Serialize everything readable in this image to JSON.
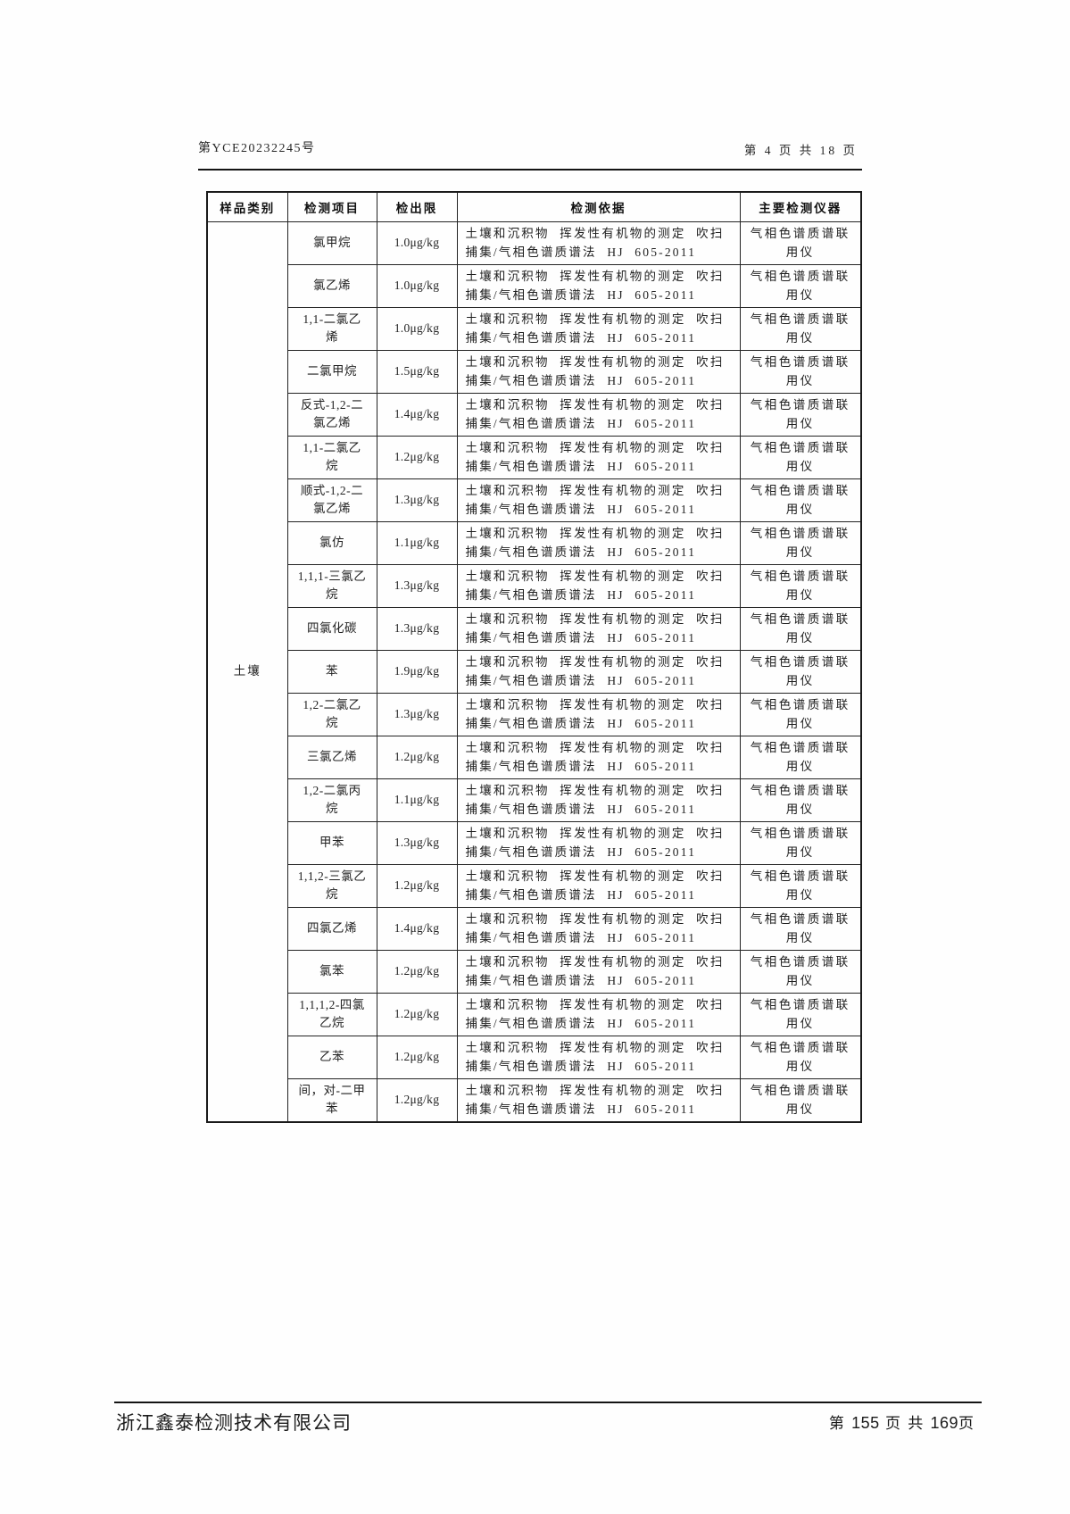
{
  "page": {
    "header_left": "第YCE20232245号",
    "header_right": "第 4 页 共 18 页",
    "footer": {
      "company": "浙江鑫泰检测技术有限公司",
      "label_di": "第",
      "page_number": "155",
      "label_mid": "页 共",
      "total_pages": "169",
      "label_ye": "页"
    }
  },
  "table": {
    "headers": {
      "sample_category": "样品类别",
      "test_item": "检测项目",
      "detection_limit": "检出限",
      "test_basis": "检测依据",
      "main_instrument": "主要检测仪器"
    },
    "sample_category": "土壤",
    "method": "土壤和沉积物 挥发性有机物的测定 吹扫\n捕集/气相色谱质谱法 HJ 605-2011",
    "instrument": "气相色谱质谱联\n用仪",
    "rows": [
      {
        "item": "氯甲烷",
        "limit": "1.0μg/kg"
      },
      {
        "item": "氯乙烯",
        "limit": "1.0μg/kg"
      },
      {
        "item": "1,1-二氯乙\n烯",
        "limit": "1.0μg/kg"
      },
      {
        "item": "二氯甲烷",
        "limit": "1.5μg/kg"
      },
      {
        "item": "反式-1,2-二\n氯乙烯",
        "limit": "1.4μg/kg"
      },
      {
        "item": "1,1-二氯乙\n烷",
        "limit": "1.2μg/kg"
      },
      {
        "item": "顺式-1,2-二\n氯乙烯",
        "limit": "1.3μg/kg"
      },
      {
        "item": "氯仿",
        "limit": "1.1μg/kg"
      },
      {
        "item": "1,1,1-三氯乙\n烷",
        "limit": "1.3μg/kg"
      },
      {
        "item": "四氯化碳",
        "limit": "1.3μg/kg"
      },
      {
        "item": "苯",
        "limit": "1.9μg/kg"
      },
      {
        "item": "1,2-二氯乙\n烷",
        "limit": "1.3μg/kg"
      },
      {
        "item": "三氯乙烯",
        "limit": "1.2μg/kg"
      },
      {
        "item": "1,2-二氯丙\n烷",
        "limit": "1.1μg/kg"
      },
      {
        "item": "甲苯",
        "limit": "1.3μg/kg"
      },
      {
        "item": "1,1,2-三氯乙\n烷",
        "limit": "1.2μg/kg"
      },
      {
        "item": "四氯乙烯",
        "limit": "1.4μg/kg"
      },
      {
        "item": "氯苯",
        "limit": "1.2μg/kg"
      },
      {
        "item": "1,1,1,2-四氯\n乙烷",
        "limit": "1.2μg/kg"
      },
      {
        "item": "乙苯",
        "limit": "1.2μg/kg"
      },
      {
        "item": "间，对-二甲\n苯",
        "limit": "1.2μg/kg"
      }
    ]
  }
}
